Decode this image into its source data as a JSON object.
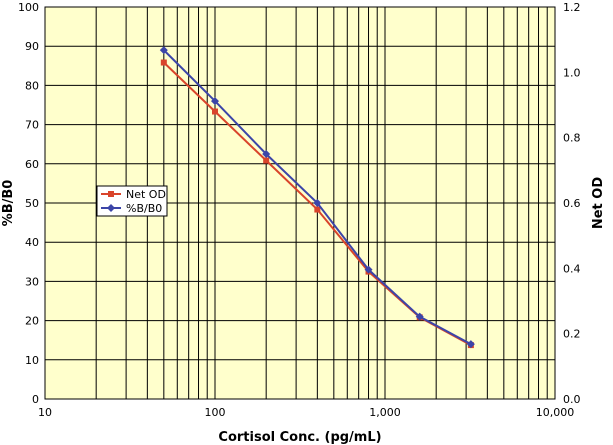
{
  "chart_data": {
    "type": "line",
    "xlabel": "Cortisol Conc. (pg/mL)",
    "ylabel_left": "%B/B0",
    "ylabel_right": "Net OD",
    "x_scale": "log",
    "xlim": [
      10,
      10000
    ],
    "x_tick_values": [
      10,
      100,
      1000,
      10000
    ],
    "x_tick_labels": [
      "10",
      "100",
      "1,000",
      "10,000"
    ],
    "ylim_left": [
      0,
      100
    ],
    "y_left_tick_values": [
      0,
      10,
      20,
      30,
      40,
      50,
      60,
      70,
      80,
      90,
      100
    ],
    "y_left_tick_labels": [
      "0",
      "10",
      "20",
      "30",
      "40",
      "50",
      "60",
      "70",
      "80",
      "90",
      "100"
    ],
    "ylim_right": [
      0,
      1.2
    ],
    "y_right_tick_values": [
      0,
      0.2,
      0.4,
      0.6,
      0.8,
      1.0,
      1.2
    ],
    "y_right_tick_labels": [
      "0.0",
      "0.2",
      "0.4",
      "0.6",
      "0.8",
      "1.0",
      "1.2"
    ],
    "grid": true,
    "background_color": "#ffffcc",
    "legend_position": "middle-left",
    "x": [
      50,
      100,
      200,
      400,
      800,
      1600,
      3200
    ],
    "series": [
      {
        "name": "Net OD",
        "axis": "right",
        "marker": "square",
        "color": "#d9442b",
        "values": [
          1.03,
          0.88,
          0.73,
          0.58,
          0.39,
          0.25,
          0.165
        ]
      },
      {
        "name": "%B/B0",
        "axis": "left",
        "marker": "diamond",
        "color": "#3c45a8",
        "values": [
          89,
          76,
          62.5,
          50,
          33,
          21,
          14
        ]
      }
    ]
  }
}
